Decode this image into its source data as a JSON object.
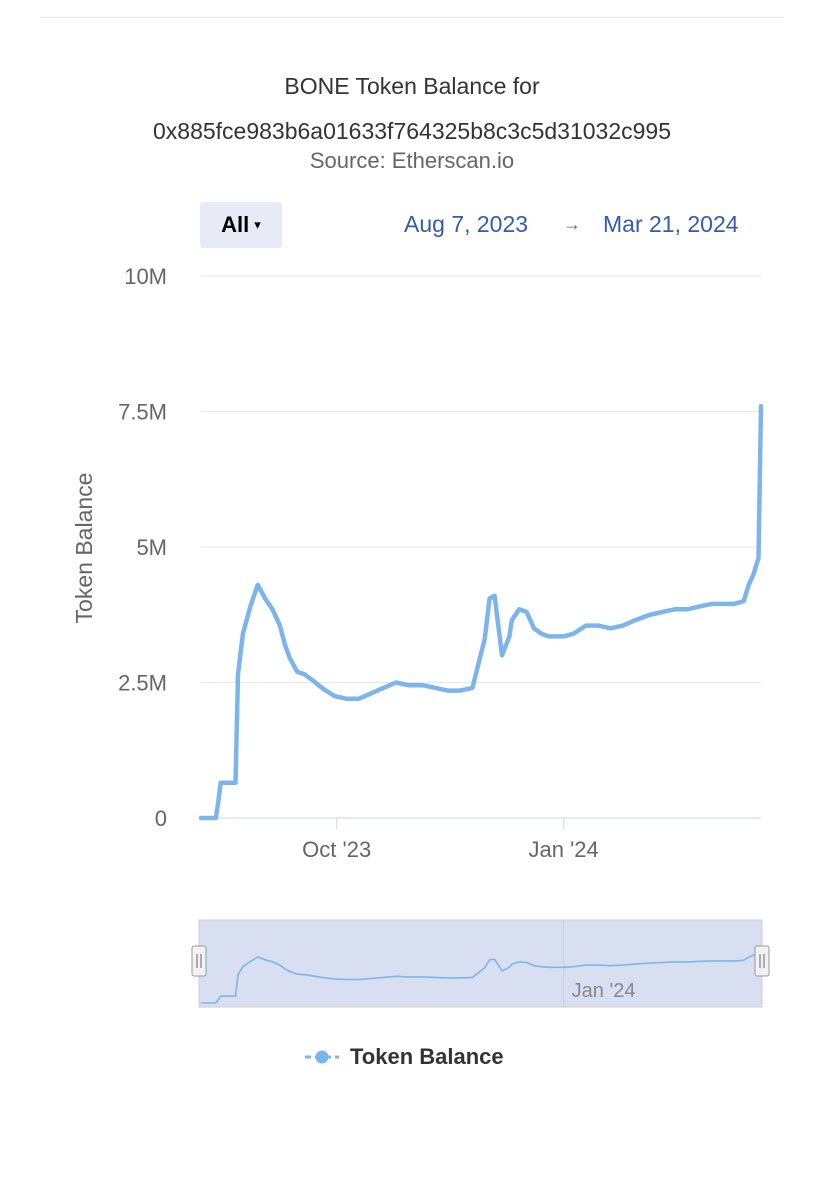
{
  "header": {
    "title_line1": "BONE Token Balance for",
    "title_line2": "0x885fce983b6a01633f764325b8c3c5d31032c995",
    "subtitle": "Source: Etherscan.io"
  },
  "range_selector": {
    "selected": "All",
    "caret": "▾",
    "from_date": "Aug 7, 2023",
    "arrow": "→",
    "to_date": "Mar 21, 2024"
  },
  "legend": {
    "label": "Token Balance"
  },
  "colors": {
    "series": "#7cb5ec",
    "navigator_fill": "#d8dff0",
    "navigator_border": "#cccccc",
    "grid": "#e6e6e6",
    "text": "#666666"
  },
  "chart_data": {
    "type": "line",
    "title": "BONE Token Balance for 0x885fce983b6a01633f764325b8c3c5d31032c995",
    "subtitle": "Source: Etherscan.io",
    "xlabel": "",
    "ylabel": "Token Balance",
    "xlim": [
      "2023-08-07",
      "2024-03-21"
    ],
    "ylim": [
      0,
      10000000
    ],
    "y_ticks": [
      0,
      2500000,
      5000000,
      7500000,
      10000000
    ],
    "y_tick_labels": [
      "0",
      "2.5M",
      "5M",
      "7.5M",
      "10M"
    ],
    "x_ticks": [
      "2023-10-01",
      "2024-01-01"
    ],
    "x_tick_labels": [
      "Oct '23",
      "Jan '24"
    ],
    "navigator_tick_labels": [
      "Jan '24"
    ],
    "grid": true,
    "legend_position": "bottom-center",
    "series": [
      {
        "name": "Token Balance",
        "x": [
          "2023-08-07",
          "2023-08-13",
          "2023-08-14",
          "2023-08-15",
          "2023-08-21",
          "2023-08-22",
          "2023-08-24",
          "2023-08-27",
          "2023-08-30",
          "2023-09-02",
          "2023-09-05",
          "2023-09-08",
          "2023-09-10",
          "2023-09-12",
          "2023-09-15",
          "2023-09-18",
          "2023-09-21",
          "2023-09-25",
          "2023-09-30",
          "2023-10-05",
          "2023-10-10",
          "2023-10-15",
          "2023-10-20",
          "2023-10-25",
          "2023-10-30",
          "2023-11-05",
          "2023-11-10",
          "2023-11-15",
          "2023-11-20",
          "2023-11-25",
          "2023-11-30",
          "2023-12-02",
          "2023-12-04",
          "2023-12-07",
          "2023-12-10",
          "2023-12-11",
          "2023-12-14",
          "2023-12-17",
          "2023-12-20",
          "2023-12-23",
          "2023-12-26",
          "2023-12-28",
          "2024-01-01",
          "2024-01-05",
          "2024-01-10",
          "2024-01-15",
          "2024-01-20",
          "2024-01-25",
          "2024-01-30",
          "2024-02-05",
          "2024-02-10",
          "2024-02-15",
          "2024-02-20",
          "2024-02-25",
          "2024-03-01",
          "2024-03-05",
          "2024-03-10",
          "2024-03-14",
          "2024-03-16",
          "2024-03-18",
          "2024-03-20",
          "2024-03-21"
        ],
        "values": [
          0,
          0,
          300000,
          650000,
          650000,
          2650000,
          3400000,
          3900000,
          4300000,
          4050000,
          3850000,
          3550000,
          3200000,
          2950000,
          2700000,
          2650000,
          2550000,
          2400000,
          2250000,
          2200000,
          2200000,
          2300000,
          2400000,
          2500000,
          2450000,
          2450000,
          2400000,
          2350000,
          2350000,
          2400000,
          3300000,
          4050000,
          4100000,
          3000000,
          3350000,
          3650000,
          3850000,
          3800000,
          3500000,
          3400000,
          3350000,
          3350000,
          3350000,
          3400000,
          3550000,
          3550000,
          3500000,
          3550000,
          3650000,
          3750000,
          3800000,
          3850000,
          3850000,
          3900000,
          3950000,
          3950000,
          3950000,
          4000000,
          4300000,
          4500000,
          4800000,
          7600000
        ]
      }
    ]
  }
}
